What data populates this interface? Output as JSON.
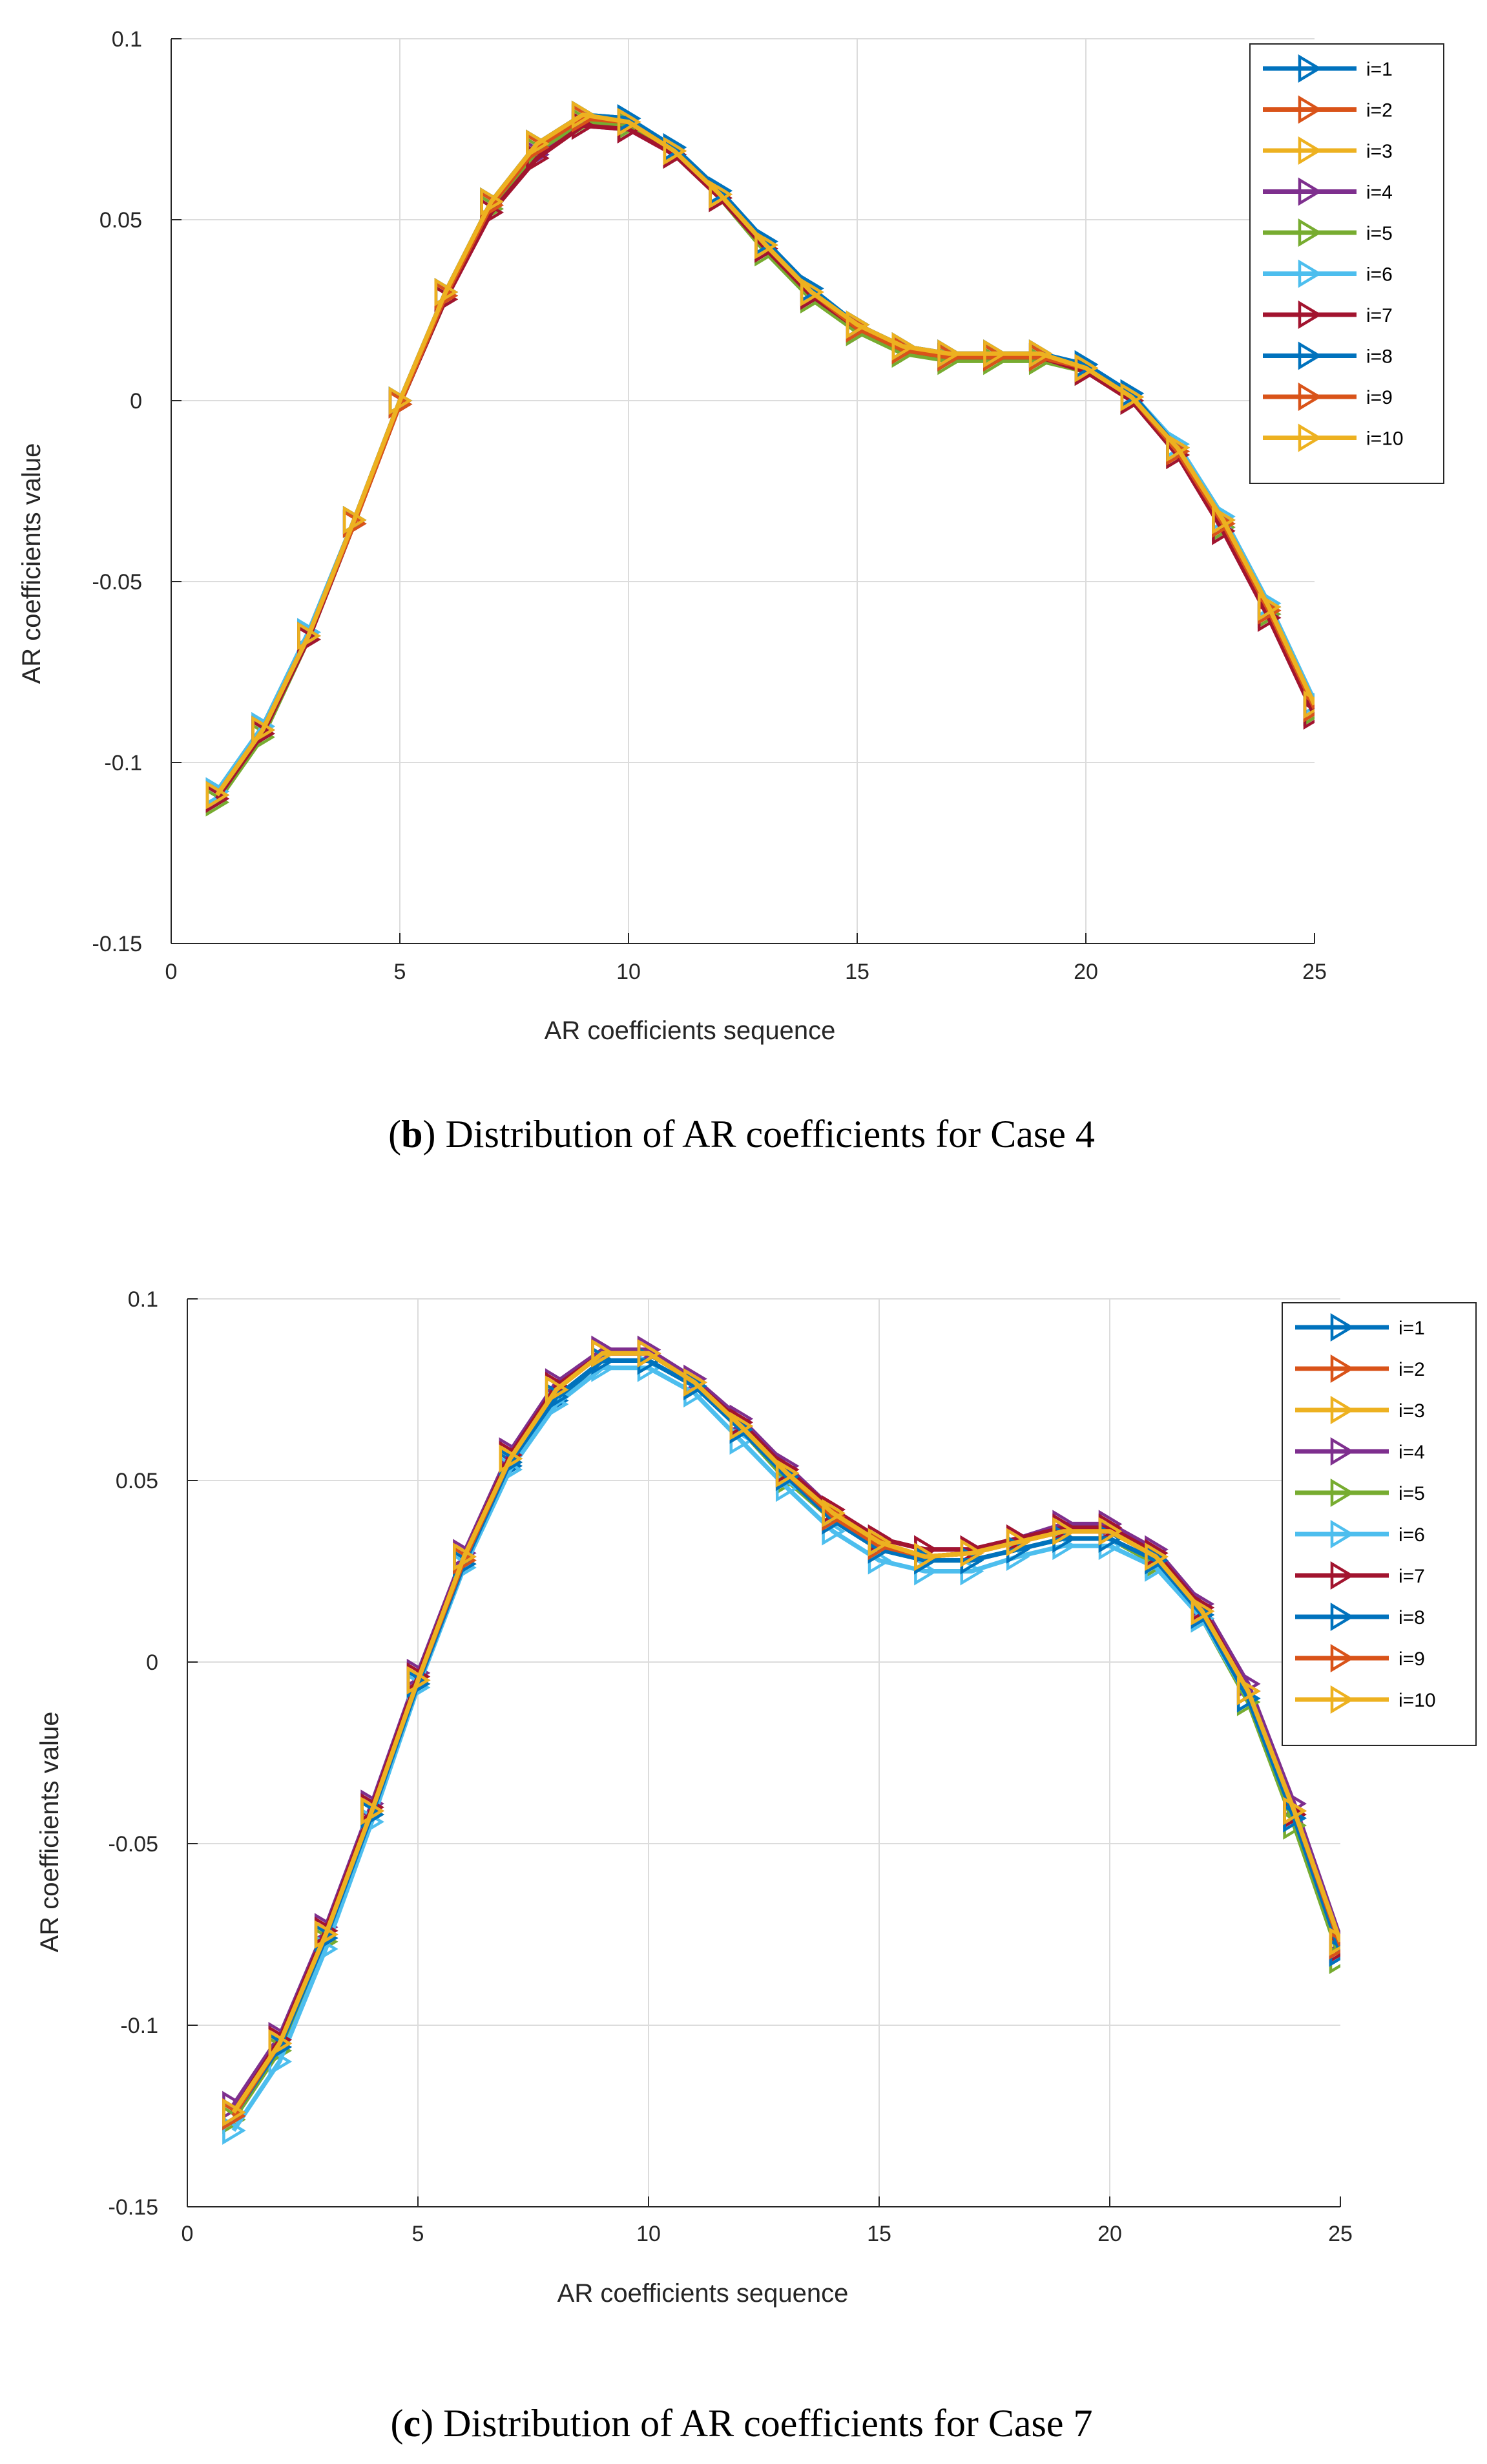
{
  "chart_data": [
    {
      "type": "line",
      "panel": "b",
      "caption": {
        "letter": "b",
        "text": "Distribution of AR coefficients for Case 4"
      },
      "xlabel": "AR coefficients sequence",
      "ylabel": "AR coefficients value",
      "xlim": [
        0,
        25
      ],
      "ylim": [
        -0.15,
        0.1
      ],
      "xticks": [
        0,
        5,
        10,
        15,
        20,
        25
      ],
      "yticks": [
        0.1,
        0.05,
        0,
        -0.05,
        -0.1,
        -0.15
      ],
      "ytick_labels": [
        "0.1",
        "0.05",
        "0",
        "-0.05",
        "-0.1",
        "-0.15"
      ],
      "grid": true,
      "legend": "top-right",
      "marker": "triangle-right",
      "x": [
        1,
        2,
        3,
        4,
        5,
        6,
        7,
        8,
        9,
        10,
        11,
        12,
        13,
        14,
        15,
        16,
        17,
        18,
        19,
        20,
        21,
        22,
        23,
        24,
        25
      ],
      "series": [
        {
          "name": "i=1",
          "color": "#0072BD",
          "values": [
            -0.108,
            -0.09,
            -0.064,
            -0.033,
            0.0,
            0.03,
            0.055,
            0.071,
            0.079,
            0.078,
            0.07,
            0.058,
            0.044,
            0.031,
            0.021,
            0.015,
            0.013,
            0.013,
            0.013,
            0.01,
            0.002,
            -0.013,
            -0.033,
            -0.057,
            -0.084
          ]
        },
        {
          "name": "i=2",
          "color": "#D95319",
          "values": [
            -0.109,
            -0.091,
            -0.065,
            -0.034,
            -0.001,
            0.029,
            0.054,
            0.07,
            0.078,
            0.077,
            0.069,
            0.057,
            0.043,
            0.03,
            0.02,
            0.014,
            0.012,
            0.012,
            0.012,
            0.009,
            0.001,
            -0.014,
            -0.034,
            -0.058,
            -0.085
          ]
        },
        {
          "name": "i=3",
          "color": "#EDB120",
          "values": [
            -0.109,
            -0.091,
            -0.065,
            -0.033,
            0.0,
            0.03,
            0.055,
            0.071,
            0.079,
            0.077,
            0.069,
            0.057,
            0.043,
            0.03,
            0.021,
            0.015,
            0.013,
            0.013,
            0.013,
            0.009,
            0.001,
            -0.013,
            -0.033,
            -0.057,
            -0.084
          ]
        },
        {
          "name": "i=4",
          "color": "#7E2F8E",
          "values": [
            -0.11,
            -0.092,
            -0.066,
            -0.034,
            -0.001,
            0.028,
            0.053,
            0.068,
            0.076,
            0.075,
            0.068,
            0.056,
            0.042,
            0.029,
            0.019,
            0.014,
            0.012,
            0.012,
            0.012,
            0.008,
            0.0,
            -0.015,
            -0.035,
            -0.059,
            -0.086
          ]
        },
        {
          "name": "i=5",
          "color": "#77AC30",
          "values": [
            -0.111,
            -0.093,
            -0.066,
            -0.034,
            -0.001,
            0.028,
            0.053,
            0.069,
            0.077,
            0.076,
            0.068,
            0.056,
            0.041,
            0.028,
            0.019,
            0.013,
            0.011,
            0.011,
            0.011,
            0.008,
            0.0,
            -0.015,
            -0.035,
            -0.059,
            -0.086
          ]
        },
        {
          "name": "i=6",
          "color": "#4DBEEE",
          "values": [
            -0.108,
            -0.09,
            -0.064,
            -0.033,
            0.0,
            0.03,
            0.055,
            0.071,
            0.079,
            0.078,
            0.07,
            0.058,
            0.044,
            0.031,
            0.021,
            0.015,
            0.013,
            0.013,
            0.013,
            0.01,
            0.002,
            -0.012,
            -0.032,
            -0.056,
            -0.083
          ]
        },
        {
          "name": "i=7",
          "color": "#A2142F",
          "values": [
            -0.11,
            -0.092,
            -0.066,
            -0.034,
            -0.001,
            0.028,
            0.052,
            0.067,
            0.076,
            0.075,
            0.068,
            0.056,
            0.042,
            0.029,
            0.02,
            0.014,
            0.012,
            0.012,
            0.012,
            0.008,
            0.0,
            -0.015,
            -0.036,
            -0.06,
            -0.087
          ]
        },
        {
          "name": "i=8",
          "color": "#0072BD",
          "values": [
            -0.109,
            -0.091,
            -0.065,
            -0.033,
            0.0,
            0.03,
            0.055,
            0.071,
            0.079,
            0.078,
            0.07,
            0.058,
            0.044,
            0.031,
            0.021,
            0.015,
            0.013,
            0.013,
            0.013,
            0.01,
            0.002,
            -0.013,
            -0.033,
            -0.057,
            -0.084
          ]
        },
        {
          "name": "i=9",
          "color": "#D95319",
          "values": [
            -0.109,
            -0.091,
            -0.065,
            -0.034,
            -0.001,
            0.029,
            0.054,
            0.07,
            0.078,
            0.077,
            0.069,
            0.057,
            0.043,
            0.03,
            0.02,
            0.014,
            0.012,
            0.012,
            0.012,
            0.009,
            0.001,
            -0.014,
            -0.034,
            -0.058,
            -0.085
          ]
        },
        {
          "name": "i=10",
          "color": "#EDB120",
          "values": [
            -0.109,
            -0.091,
            -0.065,
            -0.033,
            0.0,
            0.03,
            0.055,
            0.071,
            0.079,
            0.077,
            0.069,
            0.057,
            0.043,
            0.03,
            0.021,
            0.015,
            0.013,
            0.013,
            0.013,
            0.009,
            0.001,
            -0.013,
            -0.033,
            -0.057,
            -0.084
          ]
        }
      ]
    },
    {
      "type": "line",
      "panel": "c",
      "caption": {
        "letter": "c",
        "text": "Distribution of AR coefficients for Case 7"
      },
      "xlabel": "AR coefficients sequence",
      "ylabel": "AR coefficients value",
      "xlim": [
        0,
        25
      ],
      "ylim": [
        -0.15,
        0.1
      ],
      "xticks": [
        0,
        5,
        10,
        15,
        20,
        25
      ],
      "yticks": [
        0.1,
        0.05,
        0,
        -0.05,
        -0.1,
        -0.15
      ],
      "ytick_labels": [
        "0.1",
        "0.05",
        "0",
        "-0.05",
        "-0.1",
        "-0.15"
      ],
      "grid": true,
      "legend": "top-right",
      "marker": "triangle-right",
      "x": [
        1,
        2,
        3,
        4,
        5,
        6,
        7,
        8,
        9,
        10,
        11,
        12,
        13,
        14,
        15,
        16,
        17,
        18,
        19,
        20,
        21,
        22,
        23,
        24,
        25
      ],
      "series": [
        {
          "name": "i=1",
          "color": "#0072BD",
          "values": [
            -0.124,
            -0.106,
            -0.076,
            -0.042,
            -0.006,
            0.027,
            0.054,
            0.072,
            0.083,
            0.083,
            0.076,
            0.064,
            0.051,
            0.04,
            0.031,
            0.028,
            0.028,
            0.031,
            0.034,
            0.034,
            0.027,
            0.013,
            -0.01,
            -0.043,
            -0.08
          ]
        },
        {
          "name": "i=2",
          "color": "#D95319",
          "values": [
            -0.125,
            -0.105,
            -0.075,
            -0.041,
            -0.005,
            0.028,
            0.056,
            0.075,
            0.085,
            0.085,
            0.077,
            0.065,
            0.052,
            0.04,
            0.032,
            0.029,
            0.03,
            0.033,
            0.036,
            0.036,
            0.029,
            0.014,
            -0.008,
            -0.041,
            -0.078
          ]
        },
        {
          "name": "i=3",
          "color": "#EDB120",
          "values": [
            -0.124,
            -0.105,
            -0.075,
            -0.041,
            -0.005,
            0.029,
            0.056,
            0.075,
            0.085,
            0.085,
            0.077,
            0.065,
            0.052,
            0.041,
            0.033,
            0.029,
            0.03,
            0.033,
            0.036,
            0.036,
            0.029,
            0.014,
            -0.008,
            -0.041,
            -0.077
          ]
        },
        {
          "name": "i=4",
          "color": "#7E2F8E",
          "values": [
            -0.122,
            -0.103,
            -0.073,
            -0.039,
            -0.003,
            0.03,
            0.058,
            0.077,
            0.086,
            0.086,
            0.078,
            0.067,
            0.054,
            0.042,
            0.034,
            0.031,
            0.031,
            0.034,
            0.038,
            0.038,
            0.031,
            0.016,
            -0.006,
            -0.039,
            -0.076
          ]
        },
        {
          "name": "i=5",
          "color": "#77AC30",
          "values": [
            -0.126,
            -0.107,
            -0.077,
            -0.042,
            -0.006,
            0.027,
            0.055,
            0.073,
            0.083,
            0.083,
            0.076,
            0.064,
            0.05,
            0.039,
            0.031,
            0.028,
            0.028,
            0.031,
            0.034,
            0.034,
            0.027,
            0.012,
            -0.011,
            -0.045,
            -0.082
          ]
        },
        {
          "name": "i=6",
          "color": "#4DBEEE",
          "values": [
            -0.129,
            -0.11,
            -0.079,
            -0.044,
            -0.007,
            0.026,
            0.053,
            0.071,
            0.081,
            0.081,
            0.074,
            0.061,
            0.048,
            0.036,
            0.028,
            0.025,
            0.025,
            0.029,
            0.032,
            0.032,
            0.026,
            0.012,
            -0.01,
            -0.043,
            -0.08
          ]
        },
        {
          "name": "i=7",
          "color": "#A2142F",
          "values": [
            -0.124,
            -0.104,
            -0.074,
            -0.04,
            -0.004,
            0.029,
            0.057,
            0.076,
            0.085,
            0.085,
            0.077,
            0.066,
            0.053,
            0.042,
            0.034,
            0.031,
            0.031,
            0.034,
            0.037,
            0.037,
            0.03,
            0.015,
            -0.008,
            -0.042,
            -0.079
          ]
        },
        {
          "name": "i=8",
          "color": "#0072BD",
          "values": [
            -0.125,
            -0.106,
            -0.076,
            -0.042,
            -0.006,
            0.027,
            0.055,
            0.073,
            0.083,
            0.083,
            0.076,
            0.064,
            0.051,
            0.039,
            0.031,
            0.028,
            0.028,
            0.031,
            0.034,
            0.034,
            0.028,
            0.013,
            -0.01,
            -0.043,
            -0.08
          ]
        },
        {
          "name": "i=9",
          "color": "#D95319",
          "values": [
            -0.125,
            -0.105,
            -0.075,
            -0.041,
            -0.005,
            0.028,
            0.056,
            0.075,
            0.085,
            0.085,
            0.077,
            0.065,
            0.052,
            0.04,
            0.032,
            0.029,
            0.03,
            0.033,
            0.036,
            0.036,
            0.029,
            0.014,
            -0.008,
            -0.041,
            -0.078
          ]
        },
        {
          "name": "i=10",
          "color": "#EDB120",
          "values": [
            -0.124,
            -0.105,
            -0.075,
            -0.041,
            -0.005,
            0.029,
            0.056,
            0.075,
            0.085,
            0.085,
            0.077,
            0.065,
            0.052,
            0.041,
            0.033,
            0.029,
            0.03,
            0.033,
            0.036,
            0.036,
            0.029,
            0.014,
            -0.008,
            -0.041,
            -0.077
          ]
        }
      ]
    }
  ]
}
